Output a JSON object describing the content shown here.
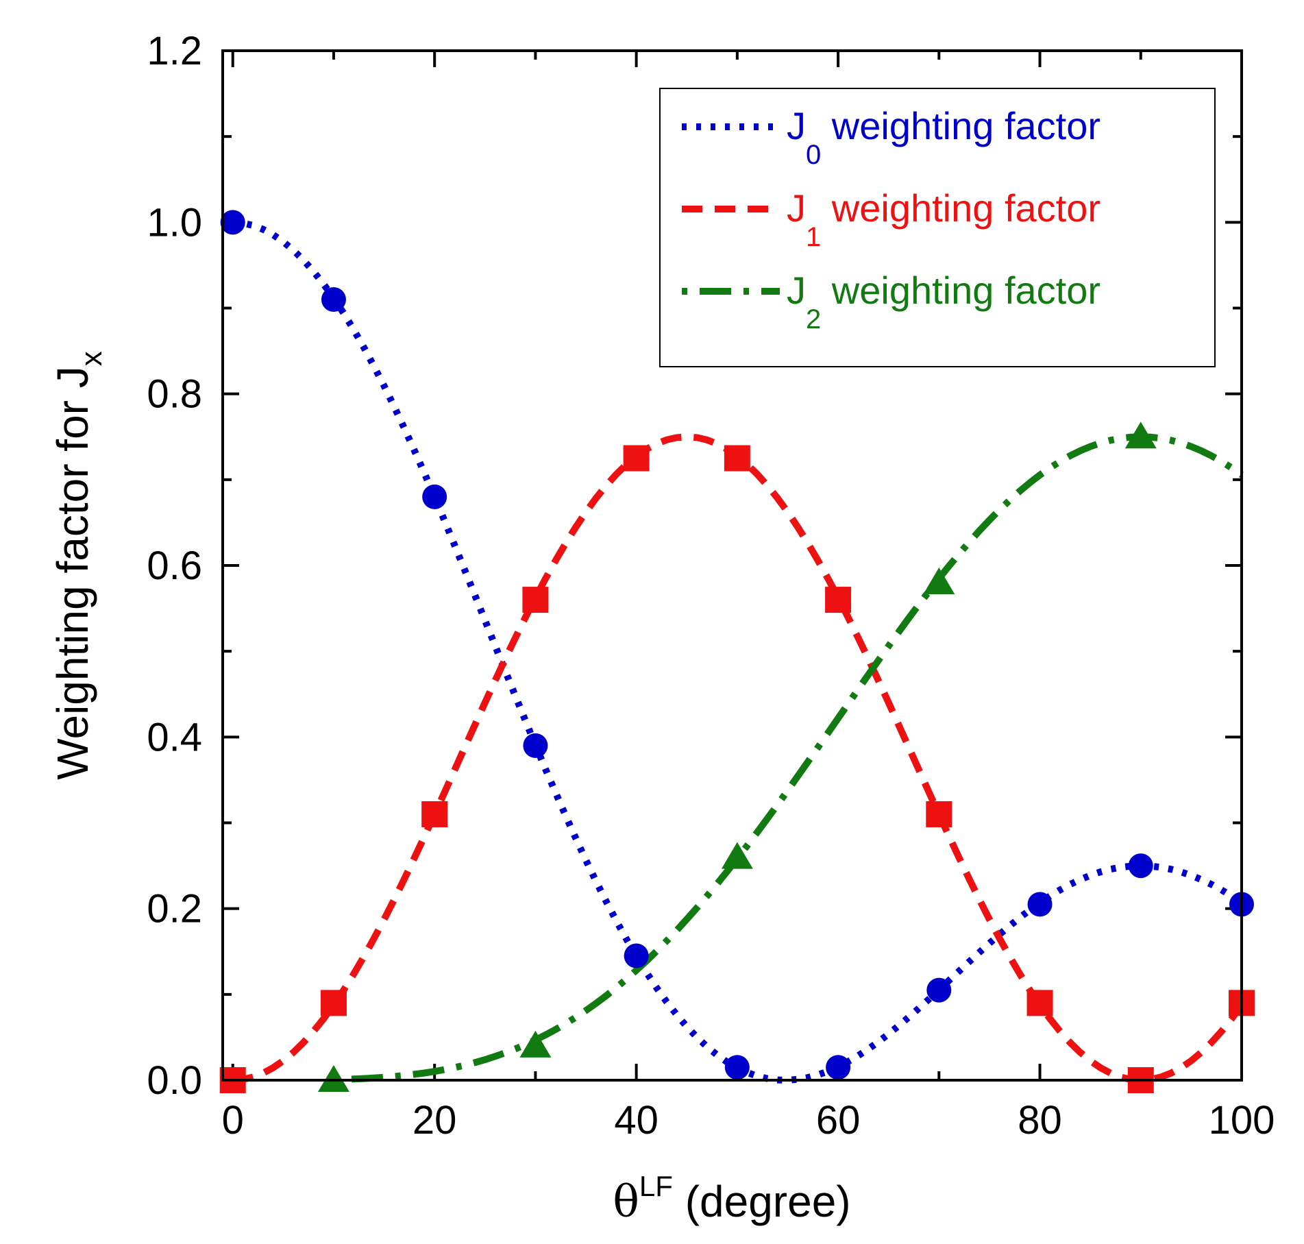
{
  "chart_data": {
    "type": "line",
    "title": "",
    "xlabel": {
      "symbol": "θ",
      "superscript": "LF",
      "text": " (degree)"
    },
    "ylabel": {
      "text": "Weighting factor for  J",
      "subscript": "x"
    },
    "xlim": [
      -1,
      100
    ],
    "ylim": [
      0,
      1.2
    ],
    "xticks": [
      0,
      20,
      40,
      60,
      80,
      100
    ],
    "xtick_labels": [
      "0",
      "20",
      "40",
      "60",
      "80",
      "100"
    ],
    "yticks": [
      0.0,
      0.2,
      0.4,
      0.6,
      0.8,
      1.0,
      1.2
    ],
    "ytick_labels": [
      "0.0",
      "0.2",
      "0.4",
      "0.6",
      "0.8",
      "1.0",
      "1.2"
    ],
    "grid": false,
    "legend_position": "top-right",
    "series": [
      {
        "name": "J0 weighting factor",
        "legend_main": "J",
        "legend_sub": "0",
        "legend_rest": " weighting factor",
        "color": "#0000cc",
        "line_style": "dotted",
        "marker": "circle",
        "x": [
          0,
          10,
          20,
          30,
          40,
          50,
          60,
          70,
          80,
          90,
          100
        ],
        "y": [
          1.0,
          0.91,
          0.68,
          0.39,
          0.145,
          0.015,
          0.015,
          0.105,
          0.205,
          0.25,
          0.205
        ]
      },
      {
        "name": "J1 weighting factor",
        "legend_main": "J",
        "legend_sub": "1",
        "legend_rest": " weighting factor",
        "color": "#ee1111",
        "line_style": "dashed",
        "marker": "square",
        "x": [
          0,
          10,
          20,
          30,
          40,
          50,
          60,
          70,
          80,
          90,
          100
        ],
        "y": [
          0.0,
          0.09,
          0.31,
          0.56,
          0.725,
          0.725,
          0.56,
          0.31,
          0.09,
          0.0,
          0.09
        ]
      },
      {
        "name": "J2 weighting factor",
        "legend_main": "J",
        "legend_sub": "2",
        "legend_rest": " weighting factor",
        "color": "#117a11",
        "line_style": "dash-dot",
        "marker": "triangle",
        "x": [
          10,
          30,
          50,
          70,
          90
        ],
        "y": [
          0.0,
          0.04,
          0.26,
          0.58,
          0.75
        ],
        "curve_end": {
          "x": 100,
          "y": 0.71
        }
      }
    ]
  }
}
